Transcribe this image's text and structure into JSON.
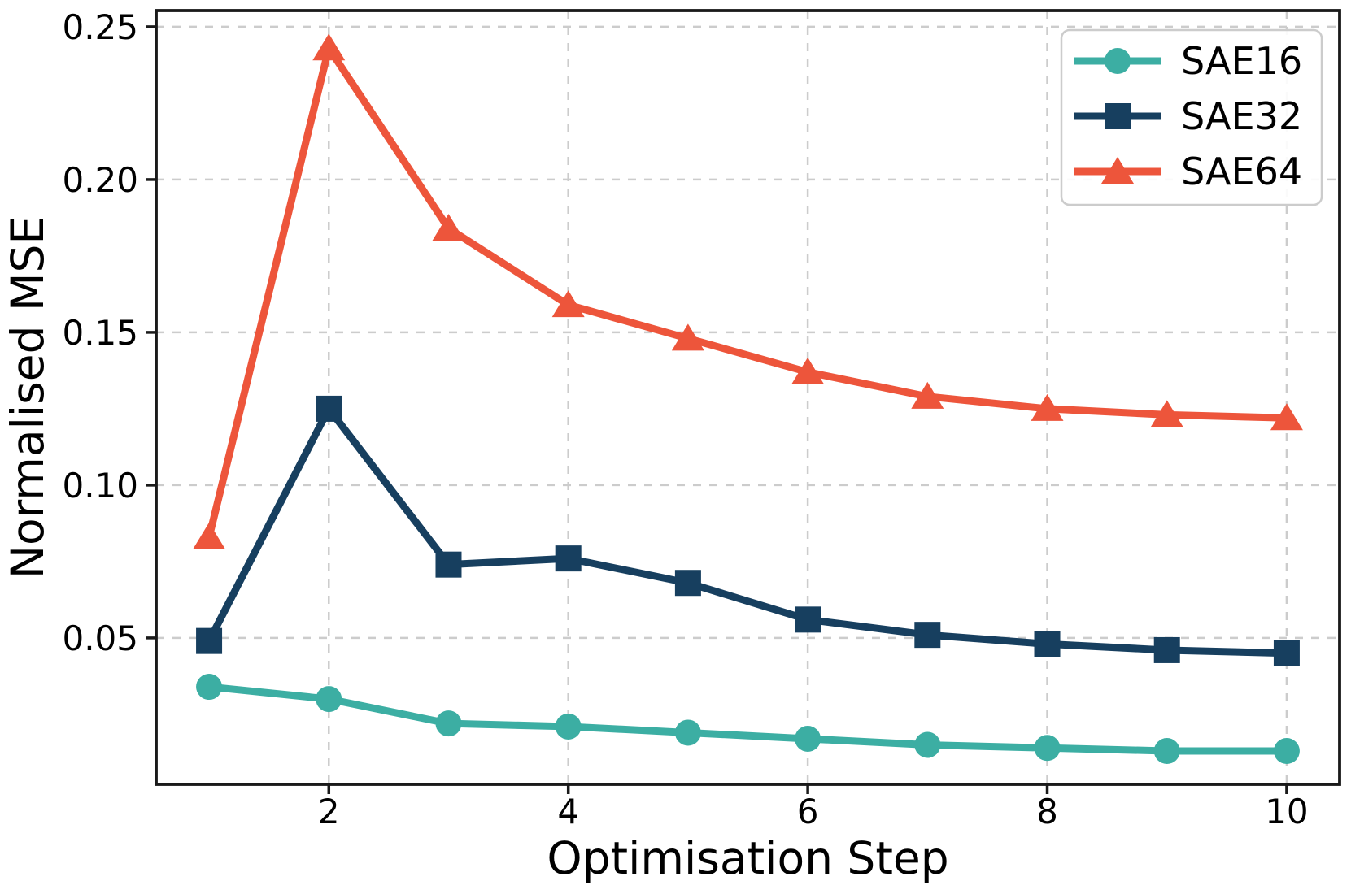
{
  "figure": {
    "background": "#ffffff"
  },
  "chart_data": {
    "type": "line",
    "title": "",
    "xlabel": "Optimisation Step",
    "ylabel": "Normalised MSE",
    "x": [
      1,
      2,
      3,
      4,
      5,
      6,
      7,
      8,
      9,
      10
    ],
    "series": [
      {
        "name": "SAE16",
        "color": "#3CAEA3",
        "marker": "circle",
        "values": [
          0.034,
          0.03,
          0.022,
          0.021,
          0.019,
          0.017,
          0.015,
          0.014,
          0.013,
          0.013
        ]
      },
      {
        "name": "SAE32",
        "color": "#173F5F",
        "marker": "square",
        "values": [
          0.049,
          0.125,
          0.074,
          0.076,
          0.068,
          0.056,
          0.051,
          0.048,
          0.046,
          0.045
        ]
      },
      {
        "name": "SAE64",
        "color": "#ED553B",
        "marker": "triangle",
        "values": [
          0.083,
          0.243,
          0.184,
          0.159,
          0.148,
          0.137,
          0.129,
          0.125,
          0.123,
          0.122
        ]
      }
    ],
    "xticks": [
      2,
      4,
      6,
      8,
      10
    ],
    "xtick_labels": [
      "2",
      "4",
      "6",
      "8",
      "10"
    ],
    "yticks": [
      0.05,
      0.1,
      0.15,
      0.2,
      0.25
    ],
    "ytick_labels": [
      "0.05",
      "0.10",
      "0.15",
      "0.20",
      "0.25"
    ],
    "xlim": [
      0.558,
      10.442
    ],
    "ylim": [
      0.0021,
      0.2553
    ],
    "grid": true,
    "grid_style": "dashed",
    "legend": {
      "position": "top-right",
      "entries": [
        "SAE16",
        "SAE32",
        "SAE64"
      ]
    },
    "colors": {
      "grid": "#cccccc",
      "spine": "#1a1a1a",
      "tick": "#1a1a1a",
      "text": "#000000",
      "legend_border": "#cccccc",
      "legend_bg": "#ffffff"
    }
  }
}
